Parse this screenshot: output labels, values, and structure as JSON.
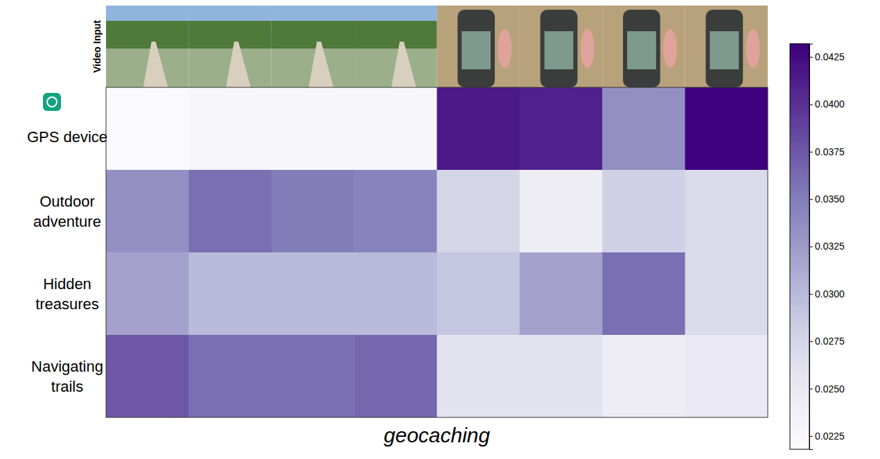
{
  "chart_data": {
    "type": "heatmap",
    "xlabel": "geocaching",
    "strip_label": "Video Input",
    "rows": [
      "GPS device",
      "Outdoor adventure",
      "Hidden treasures",
      "Navigating trails"
    ],
    "cells": [
      [
        0.0222,
        0.0228,
        0.0228,
        0.0228,
        0.0415,
        0.041,
        0.0335,
        0.0432
      ],
      [
        0.0335,
        0.036,
        0.035,
        0.0345,
        0.0275,
        0.0245,
        0.028,
        0.027
      ],
      [
        0.032,
        0.03,
        0.03,
        0.03,
        0.029,
        0.032,
        0.036,
        0.027
      ],
      [
        0.0375,
        0.036,
        0.036,
        0.0365,
        0.026,
        0.026,
        0.0245,
        0.025
      ]
    ],
    "color_range": [
      0.0218,
      0.0432
    ],
    "color_ticks": [
      0.0225,
      {
        "value": 0.025,
        "label": "0.0250"
      },
      0.0275,
      {
        "value": 0.03,
        "label": "0.0300"
      },
      0.0325,
      {
        "value": 0.035,
        "label": "0.0350"
      },
      0.0375,
      {
        "value": 0.04,
        "label": "0.0400"
      },
      0.0425
    ],
    "tick_labels": false
  }
}
